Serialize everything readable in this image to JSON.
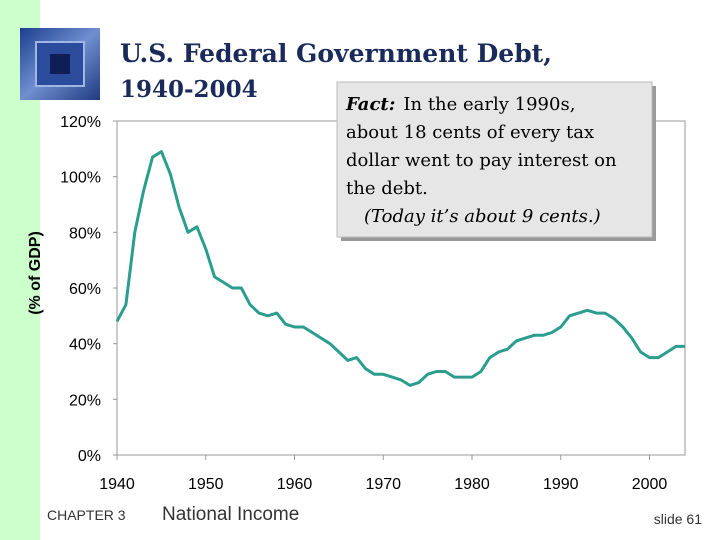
{
  "chart_data": {
    "type": "line",
    "title": "U.S. Federal Government Debt,",
    "subtitle": "1940-2004",
    "y_label": "(% of GDP)",
    "x": [
      1940,
      1941,
      1942,
      1943,
      1944,
      1945,
      1946,
      1947,
      1948,
      1949,
      1950,
      1951,
      1952,
      1953,
      1954,
      1955,
      1956,
      1957,
      1958,
      1959,
      1960,
      1961,
      1962,
      1963,
      1964,
      1965,
      1966,
      1967,
      1968,
      1969,
      1970,
      1971,
      1972,
      1973,
      1974,
      1975,
      1976,
      1977,
      1978,
      1979,
      1980,
      1981,
      1982,
      1983,
      1984,
      1985,
      1986,
      1987,
      1988,
      1989,
      1990,
      1991,
      1992,
      1993,
      1994,
      1995,
      1996,
      1997,
      1998,
      1999,
      2000,
      2001,
      2002,
      2003,
      2004
    ],
    "values": [
      48,
      54,
      80,
      95,
      107,
      109,
      101,
      89,
      80,
      82,
      74,
      64,
      62,
      60,
      60,
      54,
      51,
      50,
      51,
      47,
      46,
      46,
      44,
      42,
      40,
      37,
      34,
      35,
      31,
      29,
      29,
      28,
      27,
      25,
      26,
      29,
      30,
      30,
      28,
      28,
      28,
      30,
      35,
      37,
      38,
      41,
      42,
      43,
      43,
      44,
      46,
      50,
      51,
      52,
      51,
      51,
      49,
      46,
      42,
      37,
      35,
      35,
      37,
      39,
      39
    ],
    "color": "#2a9d8f",
    "xlim": [
      1940,
      2004
    ],
    "xticks": [
      1940,
      1950,
      1960,
      1970,
      1980,
      1990,
      2000
    ],
    "ylim": [
      0,
      120
    ],
    "yticks": [
      {
        "value": 0,
        "label": "0%"
      },
      {
        "value": 20,
        "label": "20%"
      },
      {
        "value": 40,
        "label": "40%"
      },
      {
        "value": 60,
        "label": "60%"
      },
      {
        "value": 80,
        "label": "80%"
      },
      {
        "value": 100,
        "label": "100%"
      },
      {
        "value": 120,
        "label": "120%"
      }
    ],
    "grid": false,
    "annotation": {
      "label": "Fact:",
      "lines": [
        "In the early 1990s,",
        "about 18 cents of every tax",
        "dollar went to pay interest on",
        "the debt.",
        "(Today it’s about 9 cents.)"
      ]
    }
  },
  "footer": {
    "chapter": "CHAPTER 3",
    "topic": "National Income",
    "slide": "slide 61"
  }
}
